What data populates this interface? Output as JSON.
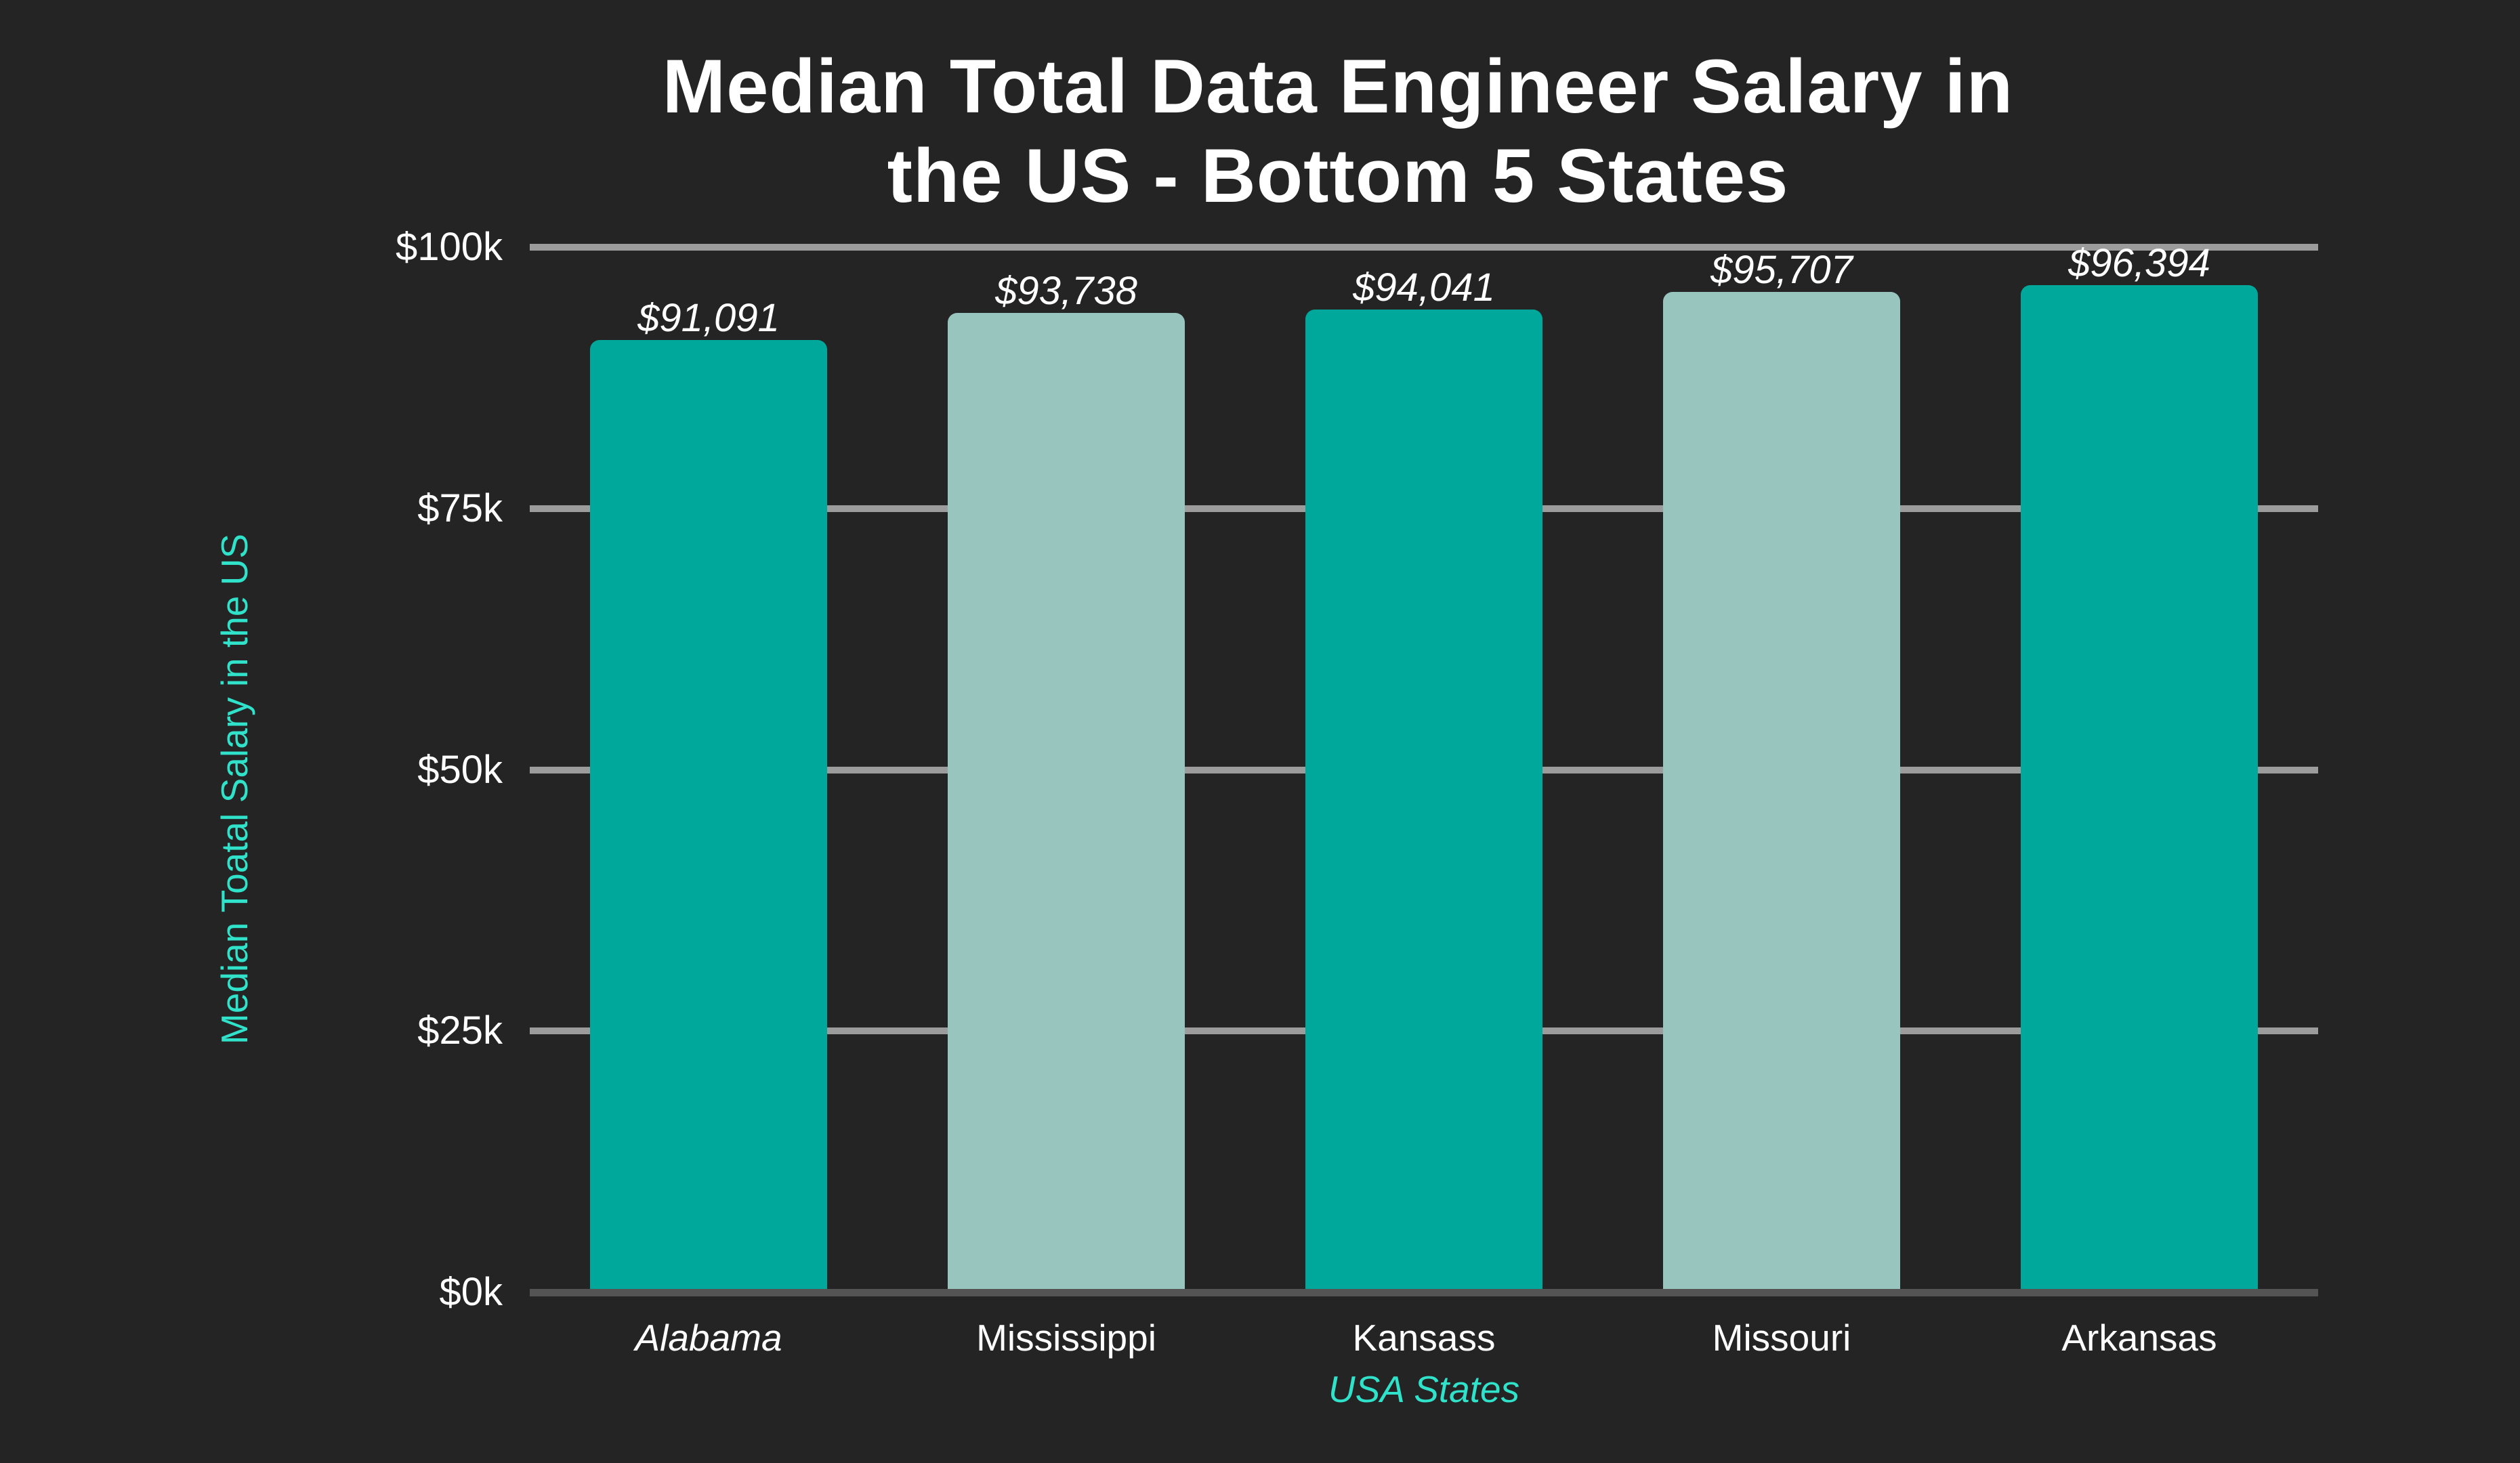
{
  "page": {
    "background_color": "#242424"
  },
  "title": {
    "line1": "Median Total Data Engineer Salary in",
    "line2": "the US -  Bottom 5 States",
    "color": "#ffffff"
  },
  "chart_data": {
    "type": "bar",
    "title": "Median Total Data Engineer Salary in the US -  Bottom 5 States",
    "categories": [
      {
        "label": "Alabama",
        "italic": true
      },
      {
        "label": "Mississippi",
        "italic": false
      },
      {
        "label": "Kansass",
        "italic": false
      },
      {
        "label": "Missouri",
        "italic": false
      },
      {
        "label": "Arkansas",
        "italic": false
      }
    ],
    "values": [
      91091,
      93738,
      94041,
      95707,
      96394
    ],
    "value_labels": [
      "$91,091",
      "$93,738",
      "$94,041",
      "$95,707",
      "$96,394"
    ],
    "bar_colors": [
      "#00A79B",
      "#98C6BF",
      "#00A79B",
      "#98C6BF",
      "#00A79B"
    ],
    "xlabel": "USA States",
    "ylabel": "Median Toatal Salary in the US",
    "ylim": [
      0,
      100000
    ],
    "yticks": [
      {
        "label": "$0k",
        "value": 0
      },
      {
        "label": "$25k",
        "value": 25000
      },
      {
        "label": "$50k",
        "value": 50000
      },
      {
        "label": "$75k",
        "value": 75000
      },
      {
        "label": "$100k",
        "value": 100000
      }
    ],
    "grid": "horizontal",
    "legend": "none"
  },
  "colors": {
    "background": "#242424",
    "bar_teal": "#00A79B",
    "bar_seafoam": "#98C6BF",
    "axis_text": "#ffffff",
    "accent_text": "#30E2C9",
    "gridline": "#9C9C9C",
    "baseline": "#545454"
  }
}
